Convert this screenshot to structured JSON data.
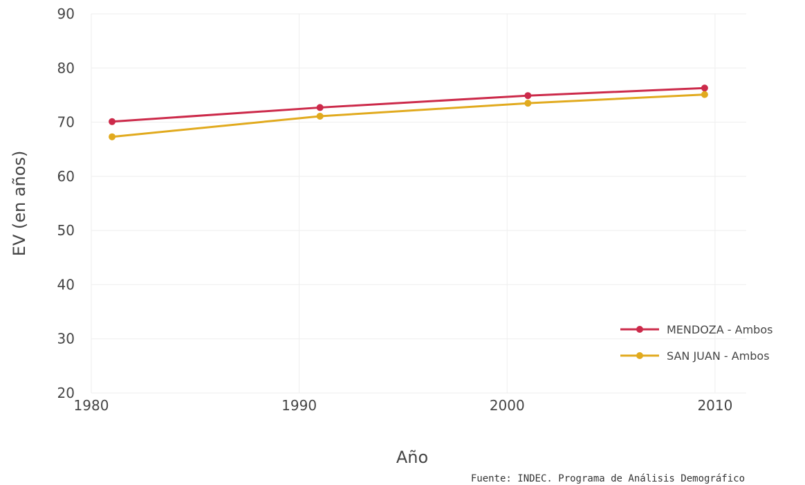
{
  "chart_data": {
    "type": "line",
    "xlabel": "Año",
    "ylabel": "EV (en años)",
    "xlim": [
      1980,
      2011.5
    ],
    "ylim": [
      20,
      90
    ],
    "x_ticks": [
      1980,
      1990,
      2000,
      2010
    ],
    "y_ticks": [
      20,
      30,
      40,
      50,
      60,
      70,
      80,
      90
    ],
    "grid": true,
    "legend_position": "bottom-right",
    "series": [
      {
        "name": "MENDOZA - Ambos",
        "color": "#cc2a4a",
        "x": [
          1981,
          1991,
          2001,
          2009.5
        ],
        "y": [
          70.1,
          72.7,
          74.9,
          76.3
        ]
      },
      {
        "name": "SAN JUAN - Ambos",
        "color": "#e1aa1e",
        "x": [
          1981,
          1991,
          2001,
          2009.5
        ],
        "y": [
          67.3,
          71.1,
          73.5,
          75.1
        ]
      }
    ]
  },
  "source_note": "Fuente: INDEC. Programa de Análisis Demográfico"
}
